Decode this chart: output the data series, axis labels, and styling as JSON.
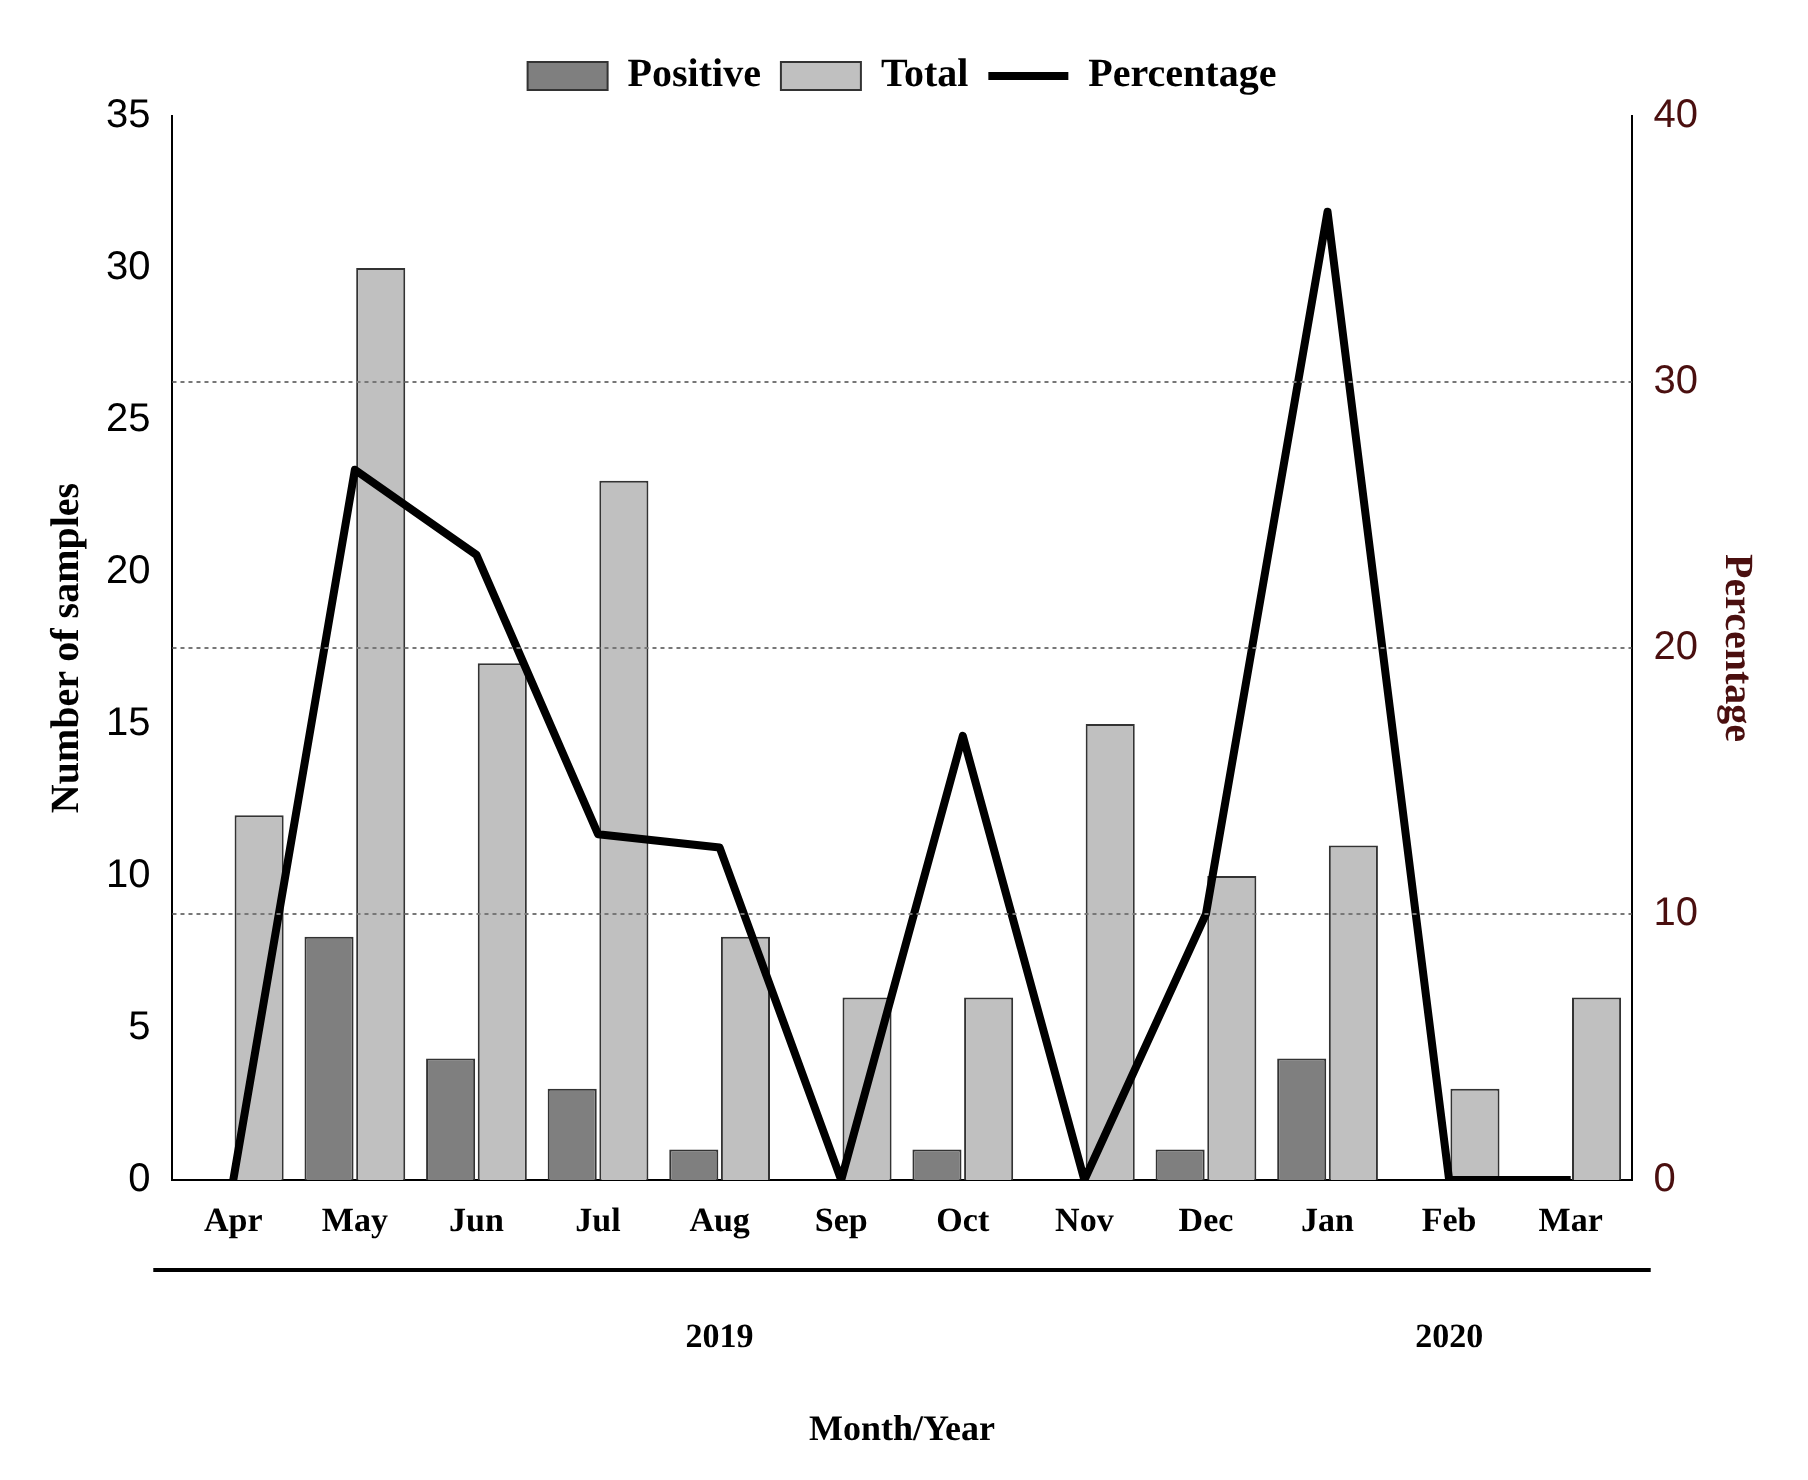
{
  "chart_data": {
    "type": "bar",
    "xlabel": "Month/Year",
    "ylabel": "Number of samples",
    "y2label": "Percentage",
    "categories": [
      "Apr",
      "May",
      "Jun",
      "Jul",
      "Aug",
      "Sep",
      "Oct",
      "Nov",
      "Dec",
      "Jan",
      "Feb",
      "Mar"
    ],
    "series": [
      {
        "name": "Positive",
        "color": "#7f7f7f",
        "values": [
          0,
          8,
          4,
          3,
          1,
          0,
          1,
          0,
          1,
          4,
          0,
          0
        ]
      },
      {
        "name": "Total",
        "color": "#c0c0c0",
        "values": [
          12,
          30,
          17,
          23,
          8,
          6,
          6,
          15,
          10,
          11,
          3,
          6
        ]
      },
      {
        "name": "Percentage",
        "type": "line",
        "axis": "y2",
        "color": "#000000",
        "values": [
          0,
          26.7,
          23.5,
          13,
          12.5,
          0,
          16.7,
          0,
          10,
          36.4,
          0,
          0
        ]
      }
    ],
    "ylim": [
      0,
      35
    ],
    "yticks": [
      0,
      5,
      10,
      15,
      20,
      25,
      30,
      35
    ],
    "y2lim": [
      0,
      40
    ],
    "y2ticks": [
      0,
      10,
      20,
      30,
      40
    ],
    "grid": "y",
    "legend": "top",
    "marker": "none",
    "line_style": "solid",
    "annotations": [
      "2019",
      "2020"
    ]
  }
}
